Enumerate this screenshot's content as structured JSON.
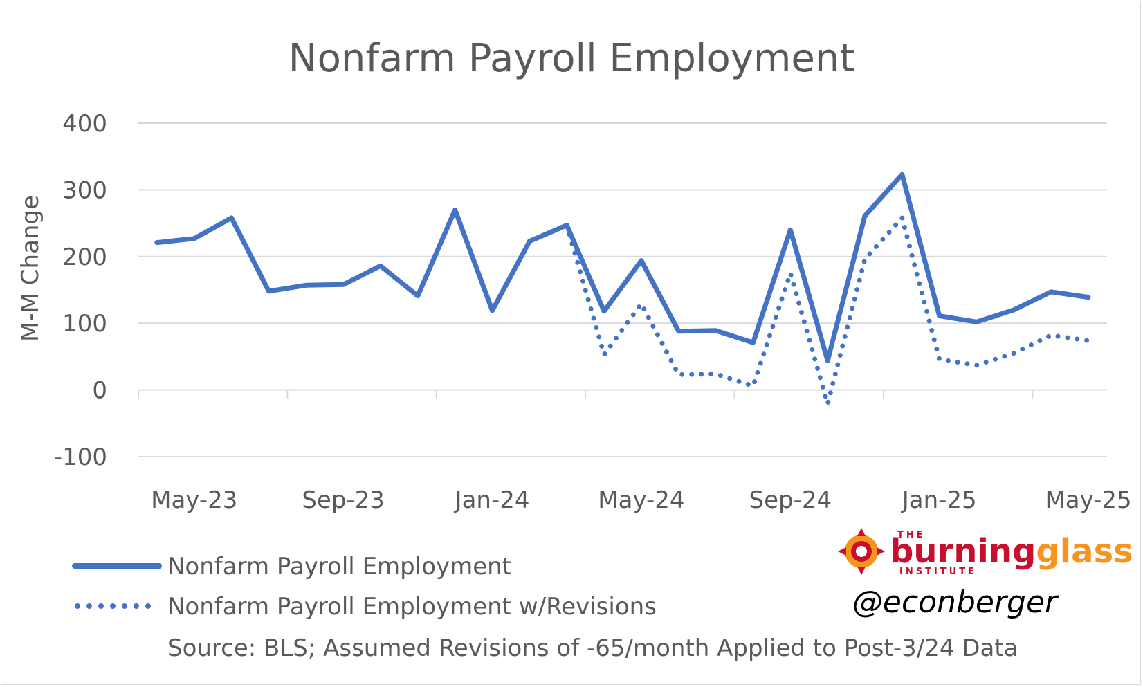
{
  "chart_data": {
    "type": "line",
    "title": "Nonfarm Payroll Employment",
    "xlabel": "",
    "ylabel": "M-M Change",
    "ylim": [
      -100,
      400
    ],
    "yticks": [
      -100,
      0,
      100,
      200,
      300,
      400
    ],
    "x_tick_labels": [
      "May-23",
      "Sep-23",
      "Jan-24",
      "May-24",
      "Sep-24",
      "Jan-25",
      "May-25"
    ],
    "x": [
      "2023-04",
      "2023-05",
      "2023-06",
      "2023-07",
      "2023-08",
      "2023-09",
      "2023-10",
      "2023-11",
      "2023-12",
      "2024-01",
      "2024-02",
      "2024-03",
      "2024-04",
      "2024-05",
      "2024-06",
      "2024-07",
      "2024-08",
      "2024-09",
      "2024-10",
      "2024-11",
      "2024-12",
      "2025-01",
      "2025-02",
      "2025-03",
      "2025-04",
      "2025-05"
    ],
    "series": [
      {
        "name": "Nonfarm Payroll Employment",
        "style": "solid",
        "color": "#4472c4",
        "values": [
          221,
          227,
          258,
          148,
          157,
          158,
          186,
          141,
          270,
          119,
          223,
          247,
          118,
          194,
          88,
          89,
          71,
          240,
          44,
          261,
          323,
          111,
          102,
          120,
          147,
          139
        ]
      },
      {
        "name": "Nonfarm Payroll Employment w/Revisions",
        "style": "dotted",
        "color": "#4472c4",
        "values": [
          null,
          null,
          null,
          null,
          null,
          null,
          null,
          null,
          null,
          null,
          null,
          247,
          53,
          129,
          23,
          24,
          6,
          175,
          -21,
          196,
          258,
          46,
          37,
          55,
          82,
          74
        ]
      }
    ],
    "grid": true,
    "legend_position": "bottom-left",
    "source": "Source: BLS; Assumed Revisions of -65/month Applied to Post-3/24 Data"
  },
  "branding": {
    "logo_small": "THE",
    "logo_part1": "burning",
    "logo_part2": "glass",
    "logo_sub": "INSTITUTE",
    "handle": "@econberger"
  }
}
